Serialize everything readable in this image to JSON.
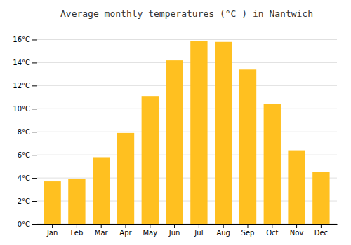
{
  "chart_data": {
    "type": "bar",
    "title": "Average monthly temperatures (°C ) in Nantwich",
    "categories": [
      "Jan",
      "Feb",
      "Mar",
      "Apr",
      "May",
      "Jun",
      "Jul",
      "Aug",
      "Sep",
      "Oct",
      "Nov",
      "Dec"
    ],
    "values": [
      3.7,
      3.9,
      5.8,
      7.9,
      11.1,
      14.2,
      15.9,
      15.8,
      13.4,
      10.4,
      6.4,
      4.5
    ],
    "color": "#FFC020",
    "ylim": [
      0,
      17
    ],
    "yticks": [
      {
        "value": 0,
        "label": "0°C"
      },
      {
        "value": 2,
        "label": "2°C"
      },
      {
        "value": 4,
        "label": "4°C"
      },
      {
        "value": 6,
        "label": "6°C"
      },
      {
        "value": 8,
        "label": "8°C"
      },
      {
        "value": 10,
        "label": "10°C"
      },
      {
        "value": 12,
        "label": "12°C"
      },
      {
        "value": 14,
        "label": "14°C"
      },
      {
        "value": 16,
        "label": "16°C"
      }
    ],
    "grid": true
  }
}
